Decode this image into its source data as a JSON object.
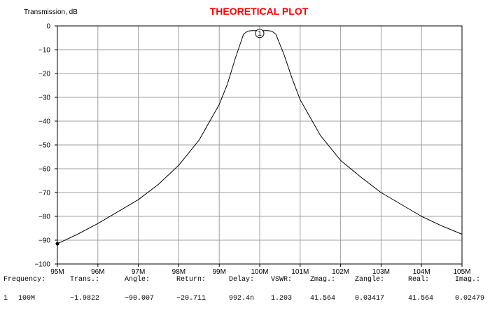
{
  "chart_data": {
    "type": "line",
    "title": "THEORETICAL PLOT",
    "ylabel": "Transmission, dB",
    "xlabel": "",
    "xlim": [
      95,
      105
    ],
    "ylim": [
      -100,
      0
    ],
    "xticks": [
      "95M",
      "96M",
      "97M",
      "98M",
      "99M",
      "100M",
      "101M",
      "102M",
      "103M",
      "104M",
      "105M"
    ],
    "yticks": [
      "0",
      "−10",
      "−20",
      "−30",
      "−40",
      "−50",
      "−60",
      "−70",
      "−80",
      "−90",
      "−100"
    ],
    "grid": true,
    "series": [
      {
        "color": "#000000",
        "x": [
          95,
          95.5,
          96,
          96.5,
          97,
          97.5,
          98,
          98.5,
          99,
          99.2,
          99.4,
          99.6,
          99.7,
          99.8,
          100,
          100.2,
          100.3,
          100.4,
          100.6,
          100.8,
          101,
          101.5,
          102,
          102.5,
          103,
          103.5,
          104,
          104.5,
          105
        ],
        "y": [
          -91.5,
          -87.5,
          -83,
          -78,
          -73,
          -66.5,
          -58.5,
          -48,
          -33,
          -24.5,
          -13.5,
          -3.5,
          -2.2,
          -2,
          -2,
          -2,
          -2.2,
          -3.5,
          -12,
          -22,
          -31,
          -46,
          -56.5,
          -63.5,
          -70,
          -75,
          -80,
          -84,
          -87.5
        ]
      }
    ],
    "marker": {
      "label": "1",
      "x": 100,
      "y": -1.98
    },
    "cursor_point": {
      "x": 95,
      "y": -91.5
    }
  },
  "readout": {
    "headers": [
      "Frequency:",
      "Trans.:",
      "Angle:",
      "Return:",
      "Delay:",
      "VSWR:",
      "Zmag.:",
      "Zangle:",
      "Real:",
      "Imag.:"
    ],
    "row_index": "1",
    "values": [
      "100M",
      "−1.9822",
      "−90.007",
      "−20.711",
      "992.4n",
      "1.203",
      "41.564",
      "0.03417",
      "41.564",
      "0.02479"
    ]
  }
}
